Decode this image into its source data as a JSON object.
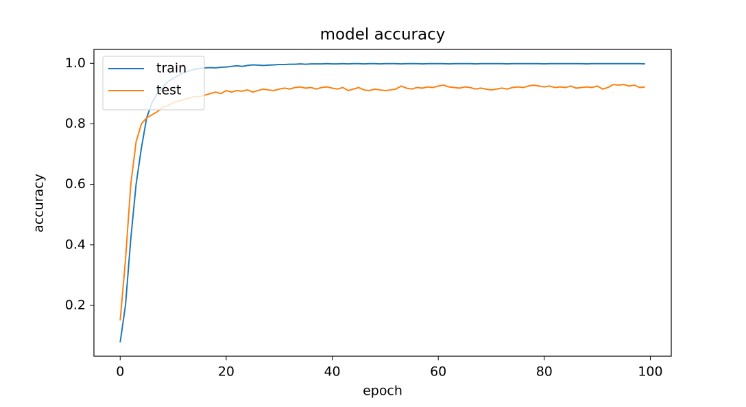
{
  "chart_data": {
    "type": "line",
    "title": "model accuracy",
    "x_label": "epoch",
    "y_label": "accuracy",
    "x": [
      0,
      1,
      2,
      3,
      4,
      5,
      6,
      7,
      8,
      9,
      10,
      11,
      12,
      13,
      14,
      15,
      16,
      17,
      18,
      19,
      20,
      21,
      22,
      23,
      24,
      25,
      26,
      27,
      28,
      29,
      30,
      31,
      32,
      33,
      34,
      35,
      36,
      37,
      38,
      39,
      40,
      41,
      42,
      43,
      44,
      45,
      46,
      47,
      48,
      49,
      50,
      51,
      52,
      53,
      54,
      55,
      56,
      57,
      58,
      59,
      60,
      61,
      62,
      63,
      64,
      65,
      66,
      67,
      68,
      69,
      70,
      71,
      72,
      73,
      74,
      75,
      76,
      77,
      78,
      79,
      80,
      81,
      82,
      83,
      84,
      85,
      86,
      87,
      88,
      89,
      90,
      91,
      92,
      93,
      94,
      95,
      96,
      97,
      98,
      99
    ],
    "series": [
      {
        "name": "train",
        "color": "#1f77b4",
        "values": [
          0.078,
          0.2,
          0.42,
          0.6,
          0.72,
          0.82,
          0.87,
          0.9,
          0.92,
          0.94,
          0.95,
          0.96,
          0.97,
          0.975,
          0.98,
          0.983,
          0.985,
          0.986,
          0.985,
          0.987,
          0.988,
          0.99,
          0.992,
          0.99,
          0.993,
          0.995,
          0.994,
          0.993,
          0.994,
          0.995,
          0.996,
          0.996,
          0.997,
          0.997,
          0.998,
          0.997,
          0.998,
          0.998,
          0.998,
          0.999,
          0.998,
          0.998,
          0.999,
          0.998,
          0.999,
          0.999,
          0.998,
          0.999,
          0.999,
          0.998,
          0.999,
          0.999,
          0.999,
          0.998,
          0.999,
          0.999,
          0.999,
          0.998,
          0.999,
          0.999,
          0.999,
          0.999,
          0.998,
          0.999,
          0.999,
          0.999,
          0.999,
          0.998,
          0.999,
          0.999,
          0.999,
          0.999,
          0.999,
          0.998,
          0.999,
          0.999,
          0.999,
          0.999,
          0.999,
          0.999,
          0.998,
          0.999,
          0.999,
          0.999,
          0.999,
          0.999,
          0.999,
          0.999,
          0.998,
          0.999,
          0.999,
          0.999,
          0.999,
          0.999,
          0.999,
          0.999,
          0.999,
          0.999,
          0.999,
          0.998
        ]
      },
      {
        "name": "test",
        "color": "#ff7f0e",
        "values": [
          0.15,
          0.35,
          0.6,
          0.74,
          0.8,
          0.82,
          0.83,
          0.84,
          0.855,
          0.86,
          0.87,
          0.875,
          0.88,
          0.885,
          0.89,
          0.89,
          0.895,
          0.9,
          0.905,
          0.9,
          0.91,
          0.905,
          0.91,
          0.908,
          0.912,
          0.905,
          0.91,
          0.915,
          0.912,
          0.91,
          0.915,
          0.918,
          0.915,
          0.92,
          0.922,
          0.918,
          0.92,
          0.915,
          0.92,
          0.922,
          0.918,
          0.915,
          0.92,
          0.91,
          0.915,
          0.92,
          0.912,
          0.91,
          0.915,
          0.912,
          0.91,
          0.912,
          0.915,
          0.925,
          0.918,
          0.915,
          0.92,
          0.918,
          0.922,
          0.92,
          0.925,
          0.928,
          0.922,
          0.92,
          0.918,
          0.922,
          0.92,
          0.915,
          0.918,
          0.915,
          0.912,
          0.915,
          0.918,
          0.915,
          0.92,
          0.922,
          0.92,
          0.925,
          0.928,
          0.925,
          0.922,
          0.925,
          0.92,
          0.922,
          0.92,
          0.925,
          0.918,
          0.92,
          0.922,
          0.92,
          0.925,
          0.915,
          0.92,
          0.93,
          0.928,
          0.93,
          0.925,
          0.928,
          0.92,
          0.922
        ]
      }
    ],
    "xlim": [
      -4.95,
      103.95
    ],
    "ylim": [
      0.032,
      1.046
    ],
    "xticks": [
      0,
      20,
      40,
      60,
      80,
      100
    ],
    "yticks": [
      0.2,
      0.4,
      0.6,
      0.8,
      {
        "value": 1,
        "label": "1.0"
      }
    ],
    "legend": "upper left",
    "grid": false
  }
}
